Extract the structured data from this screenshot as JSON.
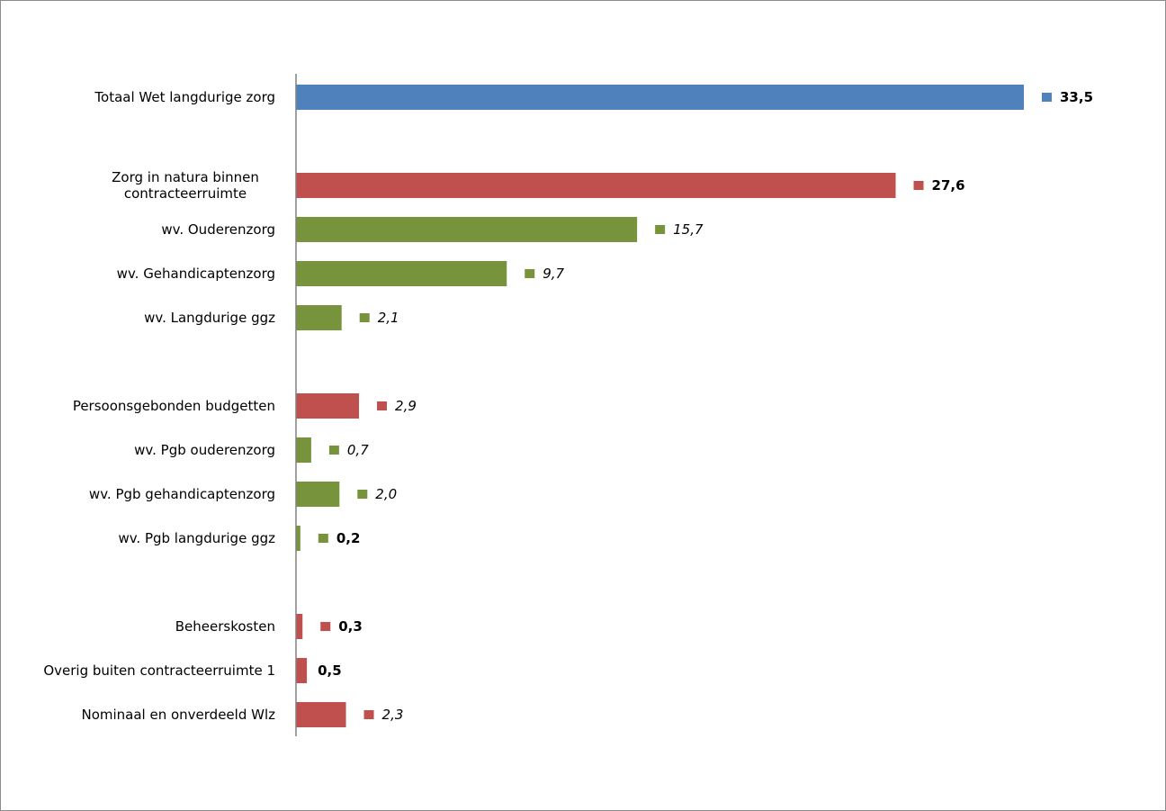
{
  "chart_data": {
    "type": "bar",
    "orientation": "horizontal",
    "title": "",
    "xlabel": "",
    "ylabel": "",
    "xlim": [
      0,
      37
    ],
    "grid": false,
    "legend": "none",
    "colors": {
      "total": "#4f81bd",
      "main": "#c0504d",
      "sub": "#77933c"
    },
    "categories": [
      {
        "label": "Totaal Wet langdurige zorg",
        "value": 33.5,
        "value_label": "33,5",
        "kind": "total",
        "style": "bold"
      },
      {
        "label": "Zorg in natura binnen\ncontracteerruimte",
        "value": 27.6,
        "value_label": "27,6",
        "kind": "main",
        "style": "bold"
      },
      {
        "label": "wv. Ouderenzorg",
        "value": 15.7,
        "value_label": "15,7",
        "kind": "sub",
        "style": "italic"
      },
      {
        "label": "wv. Gehandicaptenzorg",
        "value": 9.7,
        "value_label": "9,7",
        "kind": "sub",
        "style": "italic"
      },
      {
        "label": "wv. Langdurige ggz",
        "value": 2.1,
        "value_label": "2,1",
        "kind": "sub",
        "style": "italic"
      },
      {
        "label": "Persoonsgebonden budgetten",
        "value": 2.9,
        "value_label": "2,9",
        "kind": "main",
        "style": "italic"
      },
      {
        "label": "wv. Pgb ouderenzorg",
        "value": 0.7,
        "value_label": "0,7",
        "kind": "sub",
        "style": "italic"
      },
      {
        "label": "wv. Pgb gehandicaptenzorg",
        "value": 2.0,
        "value_label": "2,0",
        "kind": "sub",
        "style": "italic"
      },
      {
        "label": "wv. Pgb langdurige ggz",
        "value": 0.2,
        "value_label": "0,2",
        "kind": "sub",
        "style": "bold"
      },
      {
        "label": "Beheerskosten",
        "value": 0.3,
        "value_label": "0,3",
        "kind": "main",
        "style": "bold"
      },
      {
        "label": "Overig buiten contracteerruimte 1",
        "value": 0.5,
        "value_label": "0,5",
        "kind": "main",
        "style": "bold",
        "no_marker": true
      },
      {
        "label": "Nominaal en onverdeeld Wlz",
        "value": 2.3,
        "value_label": "2,3",
        "kind": "main",
        "style": "italic"
      }
    ]
  }
}
